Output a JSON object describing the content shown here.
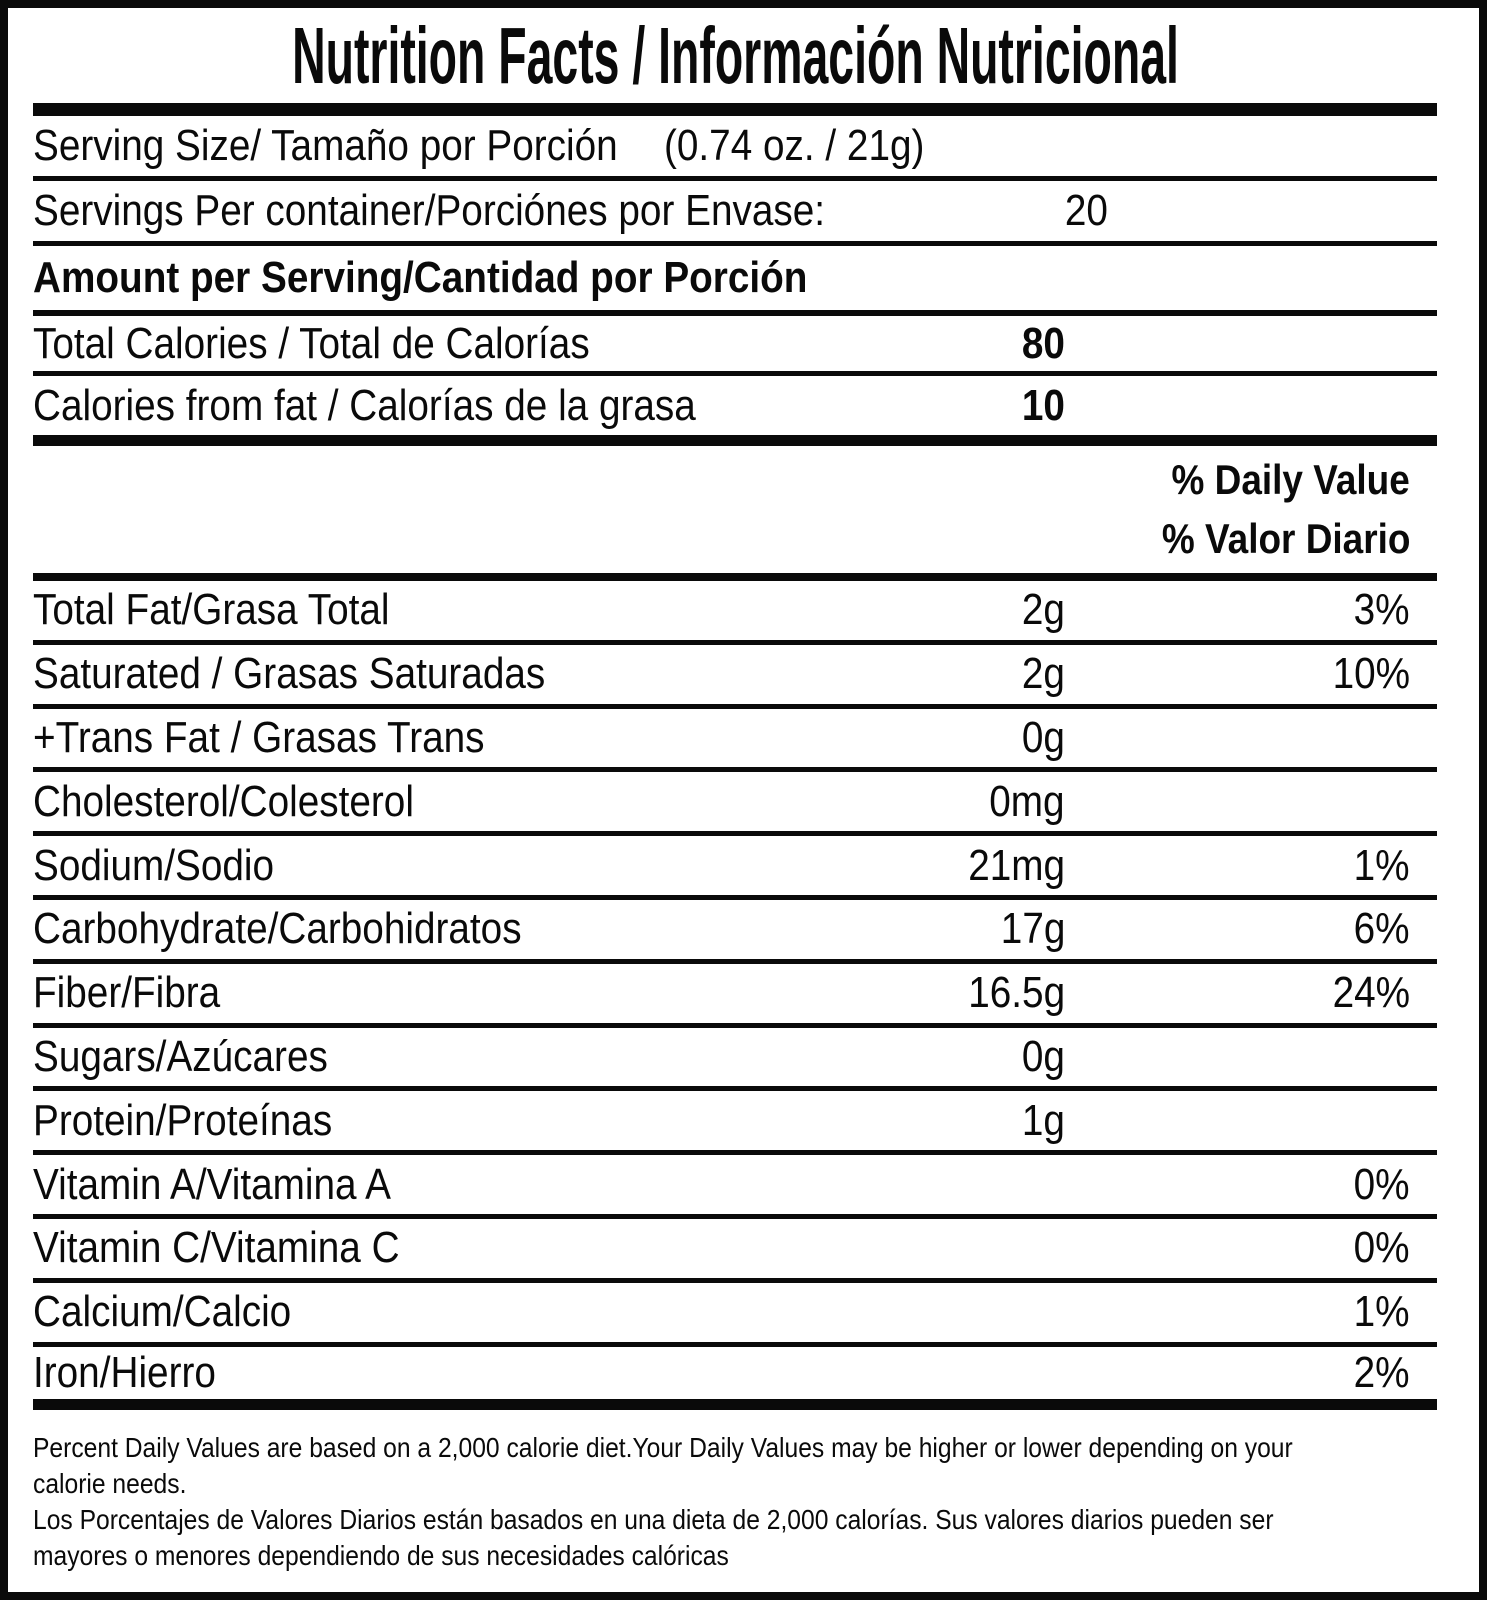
{
  "label": {
    "title": "Nutrition Facts / Información Nutricional",
    "serving_size": {
      "label": "Serving Size/ Tamaño por Porción",
      "value": "(0.74 oz. / 21g)"
    },
    "servings_per_container": {
      "label": "Servings Per container/Porciónes por Envase:",
      "value": "20"
    },
    "amount_per_serving_heading": "Amount per Serving/Cantidad por Porción",
    "calories": [
      {
        "label": "Total Calories / Total de Calorías",
        "value": "80"
      },
      {
        "label": "Calories from fat / Calorías de la grasa",
        "value": "10"
      }
    ],
    "daily_value_header": {
      "line1": "% Daily Value",
      "line2": "% Valor Diario"
    },
    "nutrients": [
      {
        "label": "Total Fat/Grasa Total",
        "amount": "2g",
        "dv": "3%"
      },
      {
        "label": "Saturated / Grasas Saturadas",
        "amount": "2g",
        "dv": "10%"
      },
      {
        "label": "+Trans Fat / Grasas Trans",
        "amount": "0g",
        "dv": ""
      },
      {
        "label": "Cholesterol/Colesterol",
        "amount": "0mg",
        "dv": ""
      },
      {
        "label": "Sodium/Sodio",
        "amount": "21mg",
        "dv": "1%"
      },
      {
        "label": "Carbohydrate/Carbohidratos",
        "amount": "17g",
        "dv": "6%"
      },
      {
        "label": "Fiber/Fibra",
        "amount": "16.5g",
        "dv": "24%"
      },
      {
        "label": "Sugars/Azúcares",
        "amount": "0g",
        "dv": ""
      },
      {
        "label": "Protein/Proteínas",
        "amount": "1g",
        "dv": ""
      },
      {
        "label": "Vitamin A/Vitamina A",
        "amount": "",
        "dv": "0%"
      },
      {
        "label": "Vitamin C/Vitamina C",
        "amount": "",
        "dv": "0%"
      },
      {
        "label": "Calcium/Calcio",
        "amount": "",
        "dv": "1%"
      },
      {
        "label": "Iron/Hierro",
        "amount": "",
        "dv": "2%"
      }
    ],
    "footnote": {
      "lines": [
        "Percent Daily Values are based on a 2,000 calorie diet.Your Daily Values may be higher or lower depending on your",
        "calorie needs.",
        "Los Porcentajes de Valores Diarios están basados en una dieta de 2,000 calorías. Sus valores diarios pueden ser",
        "mayores o menores dependiendo de sus necesidades calóricas"
      ]
    },
    "colors": {
      "ink": "#0a0a0a",
      "background": "#ffffff"
    }
  }
}
